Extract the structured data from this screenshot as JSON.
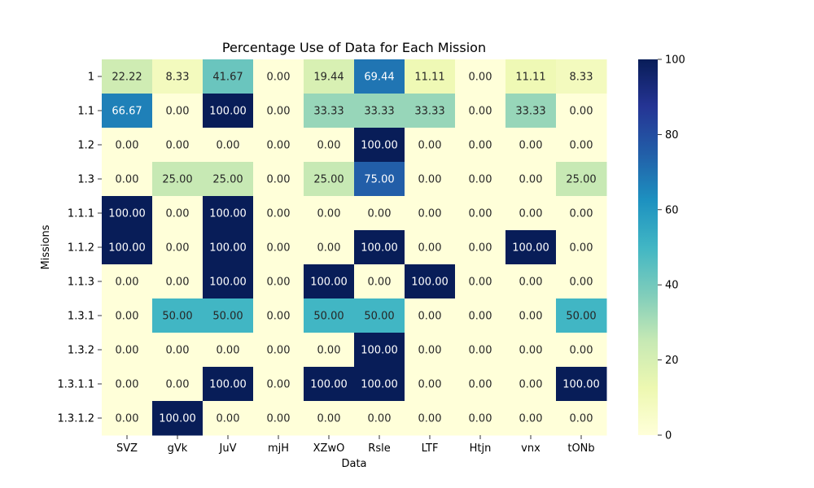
{
  "chart_data": {
    "type": "heatmap",
    "title": "Percentage Use of Data for Each Mission",
    "xlabel": "Data",
    "ylabel": "Missions",
    "x_categories": [
      "SVZ",
      "gVk",
      "JuV",
      "mjH",
      "XZwO",
      "Rsle",
      "LTF",
      "Htjn",
      "vnx",
      "tONb"
    ],
    "y_categories": [
      "1",
      "1.1",
      "1.2",
      "1.3",
      "1.1.1",
      "1.1.2",
      "1.1.3",
      "1.3.1",
      "1.3.2",
      "1.3.1.1",
      "1.3.1.2"
    ],
    "values": [
      [
        22.22,
        8.33,
        41.67,
        0.0,
        19.44,
        69.44,
        11.11,
        0.0,
        11.11,
        8.33
      ],
      [
        66.67,
        0.0,
        100.0,
        0.0,
        33.33,
        33.33,
        33.33,
        0.0,
        33.33,
        0.0
      ],
      [
        0.0,
        0.0,
        0.0,
        0.0,
        0.0,
        100.0,
        0.0,
        0.0,
        0.0,
        0.0
      ],
      [
        0.0,
        25.0,
        25.0,
        0.0,
        25.0,
        75.0,
        0.0,
        0.0,
        0.0,
        25.0
      ],
      [
        100.0,
        0.0,
        100.0,
        0.0,
        0.0,
        0.0,
        0.0,
        0.0,
        0.0,
        0.0
      ],
      [
        100.0,
        0.0,
        100.0,
        0.0,
        0.0,
        100.0,
        0.0,
        0.0,
        100.0,
        0.0
      ],
      [
        0.0,
        0.0,
        100.0,
        0.0,
        100.0,
        0.0,
        100.0,
        0.0,
        0.0,
        0.0
      ],
      [
        0.0,
        50.0,
        50.0,
        0.0,
        50.0,
        50.0,
        0.0,
        0.0,
        0.0,
        50.0
      ],
      [
        0.0,
        0.0,
        0.0,
        0.0,
        0.0,
        100.0,
        0.0,
        0.0,
        0.0,
        0.0
      ],
      [
        0.0,
        0.0,
        100.0,
        0.0,
        100.0,
        100.0,
        0.0,
        0.0,
        0.0,
        100.0
      ],
      [
        0.0,
        100.0,
        0.0,
        0.0,
        0.0,
        0.0,
        0.0,
        0.0,
        0.0,
        0.0
      ]
    ],
    "value_format": "2 decimals",
    "colormap": "YlGnBu",
    "colormap_stops": [
      "#ffffd9",
      "#edf8b1",
      "#c7e9b4",
      "#7fcdbb",
      "#41b6c4",
      "#1d91c0",
      "#225ea8",
      "#253494",
      "#081d58"
    ],
    "vmin": 0,
    "vmax": 100,
    "colorbar_ticks": [
      0,
      20,
      40,
      60,
      80,
      100
    ],
    "annotation_colors": {
      "light": "#ffffff",
      "dark": "#262626"
    },
    "grid": false,
    "legend": "colorbar on right"
  }
}
